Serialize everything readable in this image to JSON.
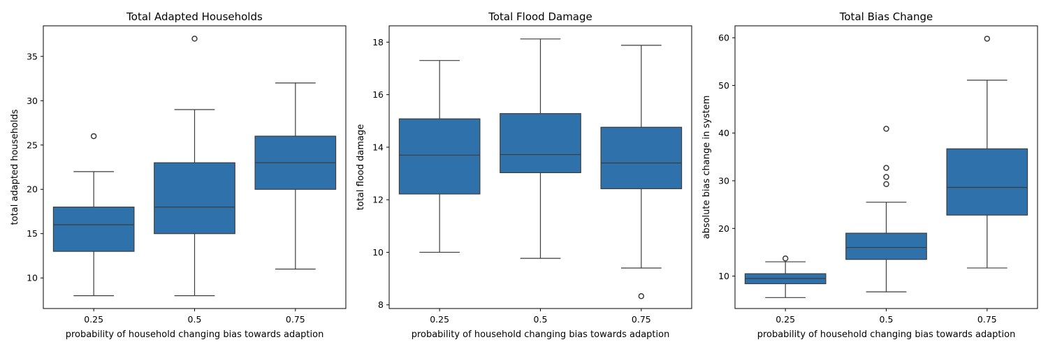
{
  "chart_data": [
    {
      "type": "box",
      "title": "Total Adapted Households",
      "xlabel": "probability of household changing bias towards adaption",
      "ylabel": "total adapted households",
      "ylim": [
        6.55,
        38.45
      ],
      "yticks": [
        10,
        15,
        20,
        25,
        30,
        35
      ],
      "categories": [
        "0.25",
        "0.5",
        "0.75"
      ],
      "boxes": [
        {
          "category": "0.25",
          "whisker_low": 8,
          "q1": 13,
          "median": 16,
          "q3": 18,
          "whisker_high": 22,
          "outliers": [
            26
          ]
        },
        {
          "category": "0.5",
          "whisker_low": 8,
          "q1": 15,
          "median": 18,
          "q3": 23,
          "whisker_high": 29,
          "outliers": [
            37
          ]
        },
        {
          "category": "0.75",
          "whisker_low": 11,
          "q1": 20,
          "median": 23,
          "q3": 26,
          "whisker_high": 32,
          "outliers": []
        }
      ]
    },
    {
      "type": "box",
      "title": "Total Flood Damage",
      "xlabel": "probability of household changing bias towards adaption",
      "ylabel": "total flood damage",
      "ylim": [
        7.86,
        18.62
      ],
      "yticks": [
        8,
        10,
        12,
        14,
        16,
        18
      ],
      "categories": [
        "0.25",
        "0.5",
        "0.75"
      ],
      "boxes": [
        {
          "category": "0.25",
          "whisker_low": 10.0,
          "q1": 12.22,
          "median": 13.7,
          "q3": 15.08,
          "whisker_high": 17.3,
          "outliers": []
        },
        {
          "category": "0.5",
          "whisker_low": 9.77,
          "q1": 13.03,
          "median": 13.72,
          "q3": 15.28,
          "whisker_high": 18.12,
          "outliers": []
        },
        {
          "category": "0.75",
          "whisker_low": 9.4,
          "q1": 12.42,
          "median": 13.4,
          "q3": 14.76,
          "whisker_high": 17.88,
          "outliers": [
            8.33
          ]
        }
      ]
    },
    {
      "type": "box",
      "title": "Total Bias Change",
      "xlabel": "probability of household changing bias towards adaption",
      "ylabel": "absolute bias change in system",
      "ylim": [
        3.2,
        62.5
      ],
      "yticks": [
        10,
        20,
        30,
        40,
        50,
        60
      ],
      "categories": [
        "0.25",
        "0.5",
        "0.75"
      ],
      "boxes": [
        {
          "category": "0.25",
          "whisker_low": 5.5,
          "q1": 8.4,
          "median": 9.5,
          "q3": 10.5,
          "whisker_high": 13.0,
          "outliers": [
            13.7
          ]
        },
        {
          "category": "0.5",
          "whisker_low": 6.7,
          "q1": 13.5,
          "median": 16.0,
          "q3": 19.0,
          "whisker_high": 25.5,
          "outliers": [
            29.3,
            30.8,
            32.7,
            40.9
          ]
        },
        {
          "category": "0.75",
          "whisker_low": 11.7,
          "q1": 22.8,
          "median": 28.6,
          "q3": 36.7,
          "whisker_high": 51.1,
          "outliers": [
            59.8
          ]
        }
      ]
    }
  ],
  "colors": {
    "box_fill": "#2f72ab",
    "line": "#3c3c3c"
  }
}
